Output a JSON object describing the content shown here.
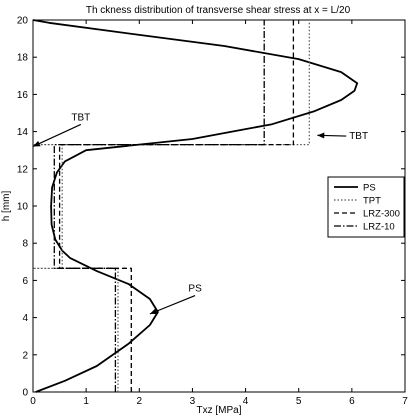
{
  "chart_data": {
    "type": "line",
    "title": "Th ckness distribution of transverse shear stress at x = L/20",
    "xlabel": "Txz [MPa]",
    "ylabel": "h [mm]",
    "xlim": [
      0,
      7
    ],
    "ylim": [
      0,
      20
    ],
    "xticks": [
      0,
      1,
      2,
      3,
      4,
      5,
      6,
      7
    ],
    "yticks": [
      0,
      2,
      4,
      6,
      8,
      10,
      12,
      14,
      16,
      18,
      20
    ],
    "grid": false,
    "legend_position": "right",
    "series": [
      {
        "name": "PS",
        "dash": "solid",
        "color": "#000000",
        "x": [
          0.05,
          0.6,
          1.2,
          1.8,
          2.2,
          2.35,
          2.2,
          1.8,
          1.2,
          0.7,
          0.55,
          0.42,
          0.35,
          0.34,
          0.36,
          0.45,
          0.6,
          1.0,
          3.0,
          4.5,
          5.3,
          5.8,
          6.05,
          6.1,
          5.8,
          5.0,
          3.6,
          2.0,
          0.3,
          0.0
        ],
        "y": [
          0.0,
          0.6,
          1.4,
          2.6,
          3.6,
          4.3,
          5.0,
          5.8,
          6.5,
          7.2,
          7.6,
          8.2,
          9.0,
          10.0,
          11.0,
          11.8,
          12.4,
          13.0,
          13.6,
          14.4,
          15.1,
          15.7,
          16.2,
          16.6,
          17.2,
          17.9,
          18.6,
          19.2,
          19.85,
          20.0
        ]
      },
      {
        "name": "TPT",
        "dash": "dotted",
        "color": "#555555",
        "x": [
          1.6,
          1.6,
          0.0,
          0.0,
          0.55,
          0.55,
          0.0,
          0.0,
          5.2,
          5.2
        ],
        "y": [
          0.0,
          6.65,
          6.65,
          6.65,
          6.65,
          13.3,
          13.3,
          13.3,
          13.3,
          20.0
        ]
      },
      {
        "name": "LRZ-300",
        "dash": "dashed",
        "color": "#000000",
        "x": [
          1.85,
          1.85,
          0.5,
          0.5,
          4.9,
          4.9
        ],
        "y": [
          0.0,
          6.65,
          6.65,
          13.3,
          13.3,
          20.0
        ]
      },
      {
        "name": "LRZ-10",
        "dash": "dashdot",
        "color": "#000000",
        "x": [
          1.55,
          1.55,
          0.4,
          0.4,
          4.35,
          4.35
        ],
        "y": [
          0.0,
          6.65,
          6.65,
          13.3,
          13.3,
          20.0
        ]
      }
    ],
    "annotations": [
      {
        "text": "TBT",
        "tip_x": 0.0,
        "tip_y": 13.2,
        "label_x": 0.9,
        "label_y": 14.6,
        "label_anchor": "middle"
      },
      {
        "text": "TBT",
        "tip_x": 5.35,
        "tip_y": 13.8,
        "label_x": 5.95,
        "label_y": 13.6,
        "label_anchor": "start"
      },
      {
        "text": "PS",
        "tip_x": 2.2,
        "tip_y": 4.2,
        "label_x": 3.05,
        "label_y": 5.4,
        "label_anchor": "middle"
      }
    ]
  }
}
